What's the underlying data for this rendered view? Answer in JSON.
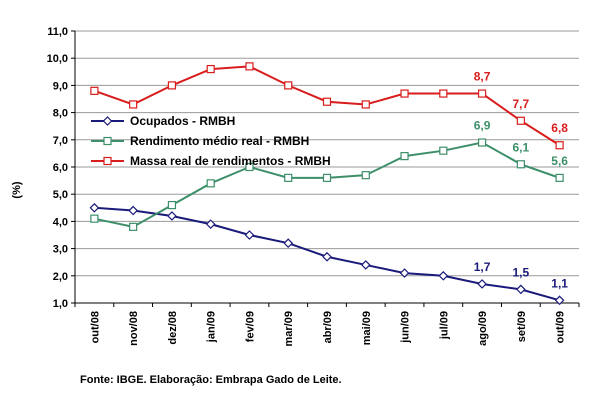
{
  "chart_data": {
    "type": "line",
    "title": "",
    "xlabel": "",
    "ylabel": "(%)",
    "ylim": [
      1.0,
      11.0
    ],
    "ytick_step": 1.0,
    "ytick_labels": [
      "1,0",
      "2,0",
      "3,0",
      "4,0",
      "5,0",
      "6,0",
      "7,0",
      "8,0",
      "9,0",
      "10,0",
      "11,0"
    ],
    "grid": true,
    "legend_position": "upper-left",
    "categories": [
      "out/08",
      "nov/08",
      "dez/08",
      "jan/09",
      "fev/09",
      "mar/09",
      "abr/09",
      "mai/09",
      "jun/09",
      "jul/09",
      "ago/09",
      "set/09",
      "out/09"
    ],
    "series": [
      {
        "name": "Ocupados - RMBH",
        "color": "#1a1a7a",
        "marker": "diamond",
        "values": [
          4.5,
          4.4,
          4.2,
          3.9,
          3.5,
          3.2,
          2.7,
          2.4,
          2.1,
          2.0,
          1.7,
          1.5,
          1.1
        ],
        "labels": [
          {
            "index": 10,
            "text": "1,7"
          },
          {
            "index": 11,
            "text": "1,5"
          },
          {
            "index": 12,
            "text": "1,1"
          }
        ]
      },
      {
        "name": "Rendimento médio real - RMBH",
        "color": "#3d8f6a",
        "marker": "square",
        "values": [
          4.1,
          3.8,
          4.6,
          5.4,
          6.0,
          5.6,
          5.6,
          5.7,
          6.4,
          6.6,
          6.9,
          6.1,
          5.6
        ],
        "labels": [
          {
            "index": 10,
            "text": "6,9"
          },
          {
            "index": 11,
            "text": "6,1"
          },
          {
            "index": 12,
            "text": "5,6"
          }
        ]
      },
      {
        "name": "Massa real de rendimentos - RMBH",
        "color": "#d91c1c",
        "marker": "square",
        "values": [
          8.8,
          8.3,
          9.0,
          9.6,
          9.7,
          9.0,
          8.4,
          8.3,
          8.7,
          8.7,
          8.7,
          7.7,
          6.8
        ],
        "labels": [
          {
            "index": 10,
            "text": "8,7"
          },
          {
            "index": 11,
            "text": "7,7"
          },
          {
            "index": 12,
            "text": "6,8"
          }
        ]
      }
    ],
    "source": "Fonte: IBGE. Elaboração: Embrapa Gado de Leite."
  }
}
